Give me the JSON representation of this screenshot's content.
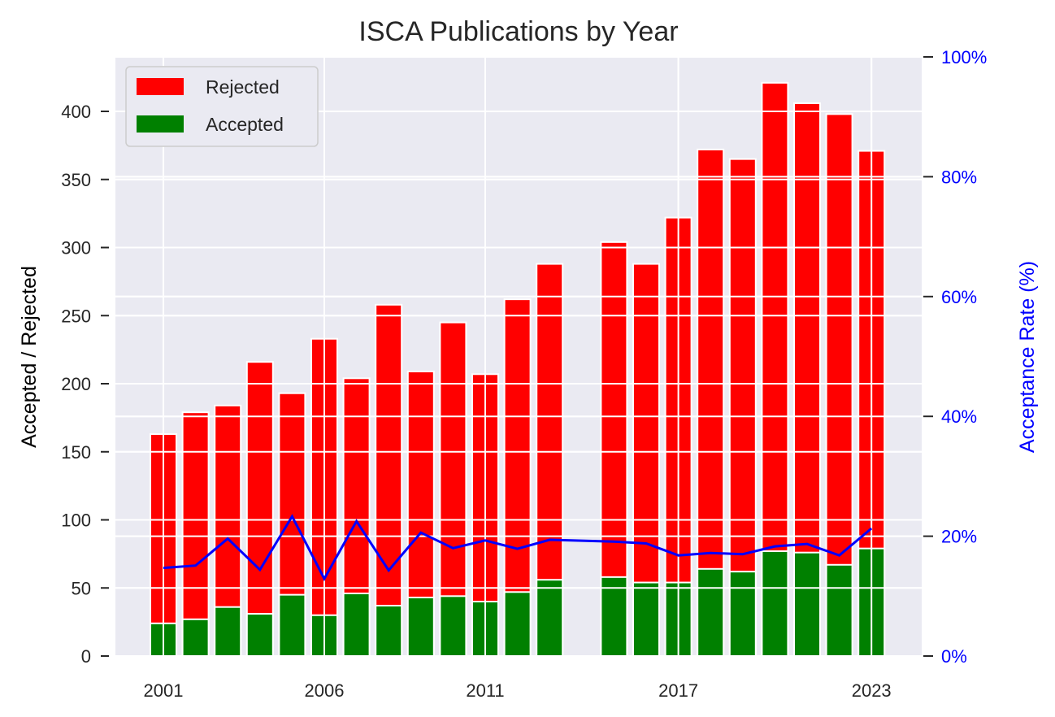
{
  "chart_data": {
    "type": "bar",
    "title": "ISCA Publications by Year",
    "ylabel": "Accepted / Rejected",
    "ylabel_right": "Acceptance Rate (%)",
    "ylim": [
      0,
      440
    ],
    "ylim_right": [
      0,
      100
    ],
    "yticks": [
      0,
      50,
      100,
      150,
      200,
      250,
      300,
      350,
      400
    ],
    "yticks_right": [
      "0%",
      "20%",
      "40%",
      "60%",
      "80%",
      "100%"
    ],
    "xticks": [
      "2001",
      "2006",
      "2011",
      "2017",
      "2023"
    ],
    "x": [
      2001,
      2002,
      2003,
      2004,
      2005,
      2006,
      2007,
      2008,
      2009,
      2010,
      2011,
      2012,
      2013,
      2015,
      2016,
      2017,
      2018,
      2019,
      2020,
      2021,
      2022,
      2023
    ],
    "series": [
      {
        "name": "Accepted",
        "color": "#008000",
        "values": [
          24,
          27,
          36,
          31,
          45,
          30,
          46,
          37,
          43,
          44,
          40,
          47,
          56,
          58,
          54,
          54,
          64,
          62,
          77,
          76,
          67,
          79
        ]
      },
      {
        "name": "Rejected",
        "color": "#ff0000",
        "values": [
          163,
          179,
          184,
          216,
          193,
          233,
          204,
          258,
          209,
          245,
          207,
          262,
          288,
          304,
          288,
          322,
          372,
          365,
          421,
          406,
          398,
          371
        ]
      }
    ],
    "acceptance_rate": {
      "color": "#0000ff",
      "values": [
        14.7,
        15.1,
        19.6,
        14.4,
        23.3,
        12.9,
        22.5,
        14.3,
        20.6,
        18.0,
        19.3,
        17.9,
        19.4,
        19.1,
        18.8,
        16.8,
        17.2,
        17.0,
        18.3,
        18.7,
        16.8,
        21.3
      ]
    },
    "legend": {
      "position": "top-left",
      "entries": [
        "Rejected",
        "Accepted"
      ]
    },
    "grid": true
  }
}
